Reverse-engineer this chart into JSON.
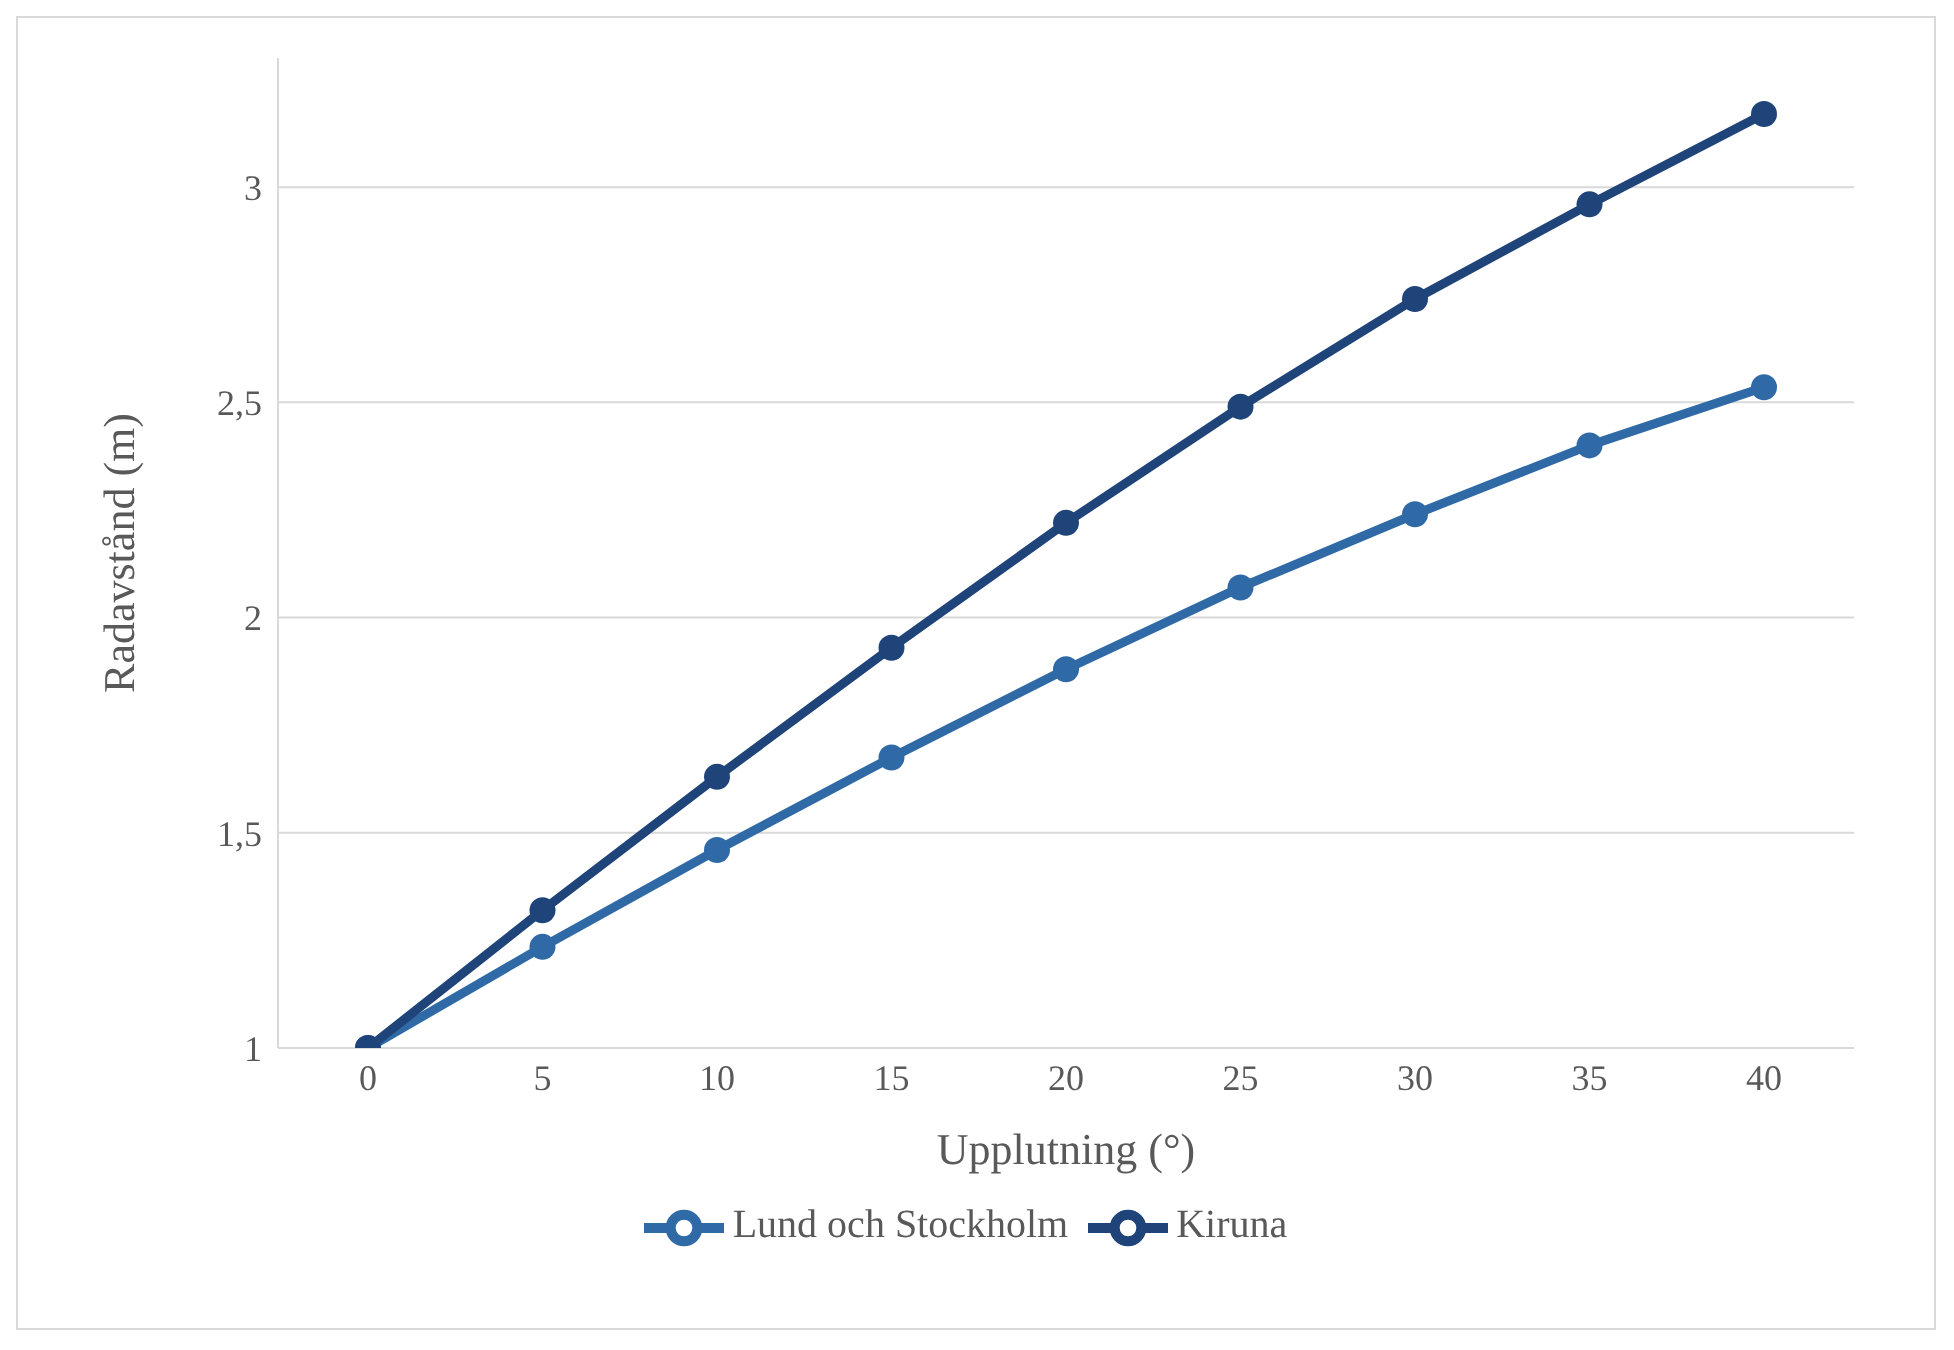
{
  "chart_data": {
    "type": "line",
    "xlabel": "Upplutning (°)",
    "ylabel": "Radavstånd (m)",
    "categories": [
      "0",
      "5",
      "10",
      "15",
      "20",
      "25",
      "30",
      "35",
      "40"
    ],
    "series": [
      {
        "name": "Lund och Stockholm",
        "color": "#2f6aa7",
        "values": [
          1,
          1.235,
          1.46,
          1.675,
          1.88,
          2.07,
          2.24,
          2.4,
          2.535
        ]
      },
      {
        "name": "Kiruna",
        "color": "#1f4479",
        "values": [
          1,
          1.32,
          1.63,
          1.93,
          2.22,
          2.49,
          2.74,
          2.96,
          3.17
        ]
      }
    ],
    "ylim": [
      1,
      3.3
    ],
    "yticks": [
      1,
      {
        "value": 1.5,
        "label": "1,5"
      },
      2,
      {
        "value": 2.5,
        "label": "2,5"
      },
      3
    ],
    "grid": "y",
    "legend": "bottom",
    "marker": "circle",
    "line_style": "solid"
  }
}
